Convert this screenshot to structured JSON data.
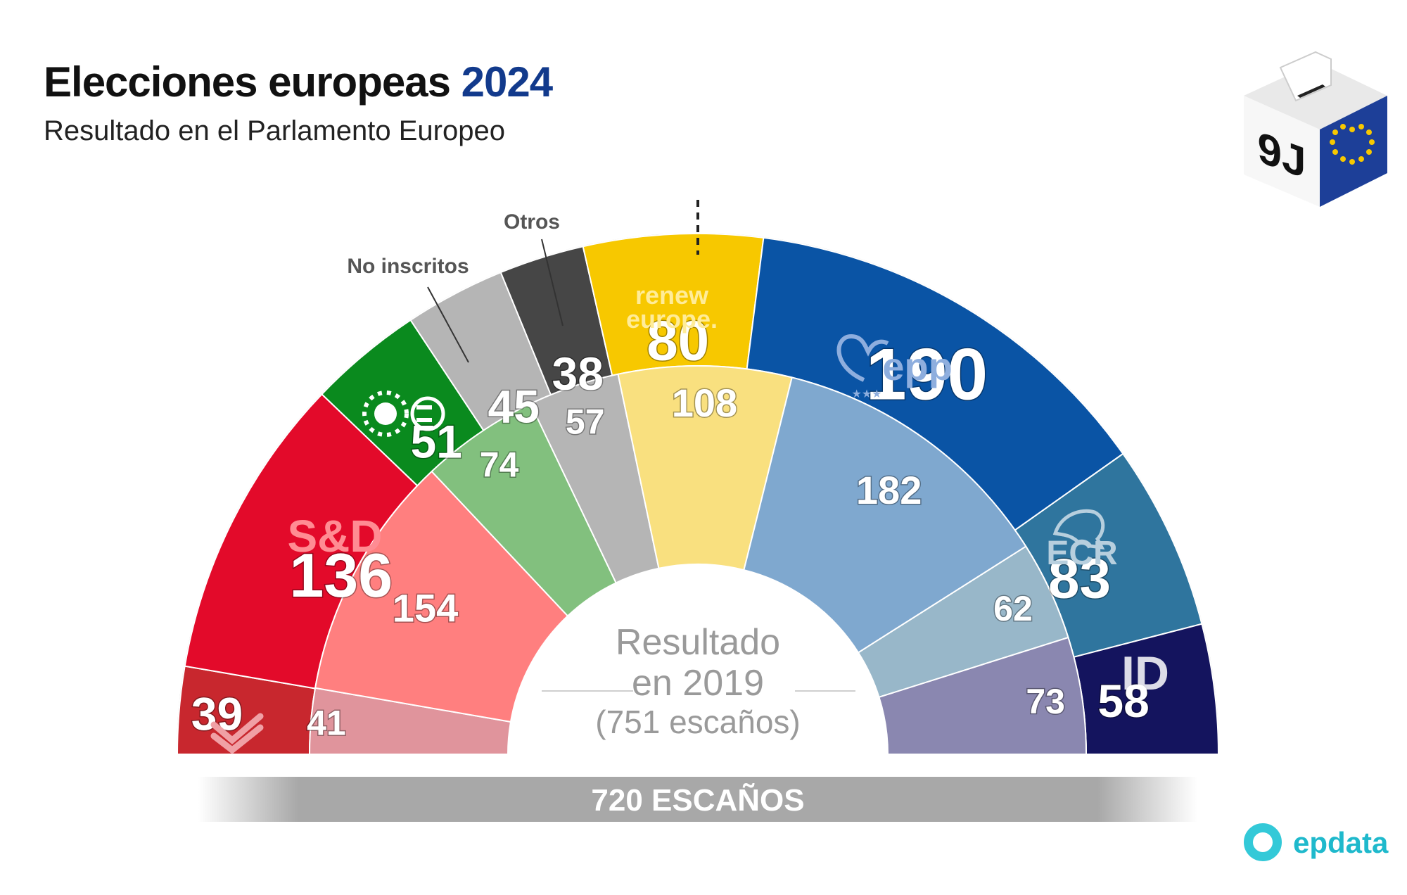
{
  "header": {
    "title": "Elecciones europeas",
    "title_year": "2024",
    "subtitle": "Resultado en el Parlamento Europeo"
  },
  "badge": {
    "label": "9J"
  },
  "total_bar": {
    "label": "720 ESCAÑOS"
  },
  "inner": {
    "line1": "Resultado",
    "line2": "en 2019",
    "line3": "(751 escaños)"
  },
  "callouts": {
    "no_inscritos": "No inscritos",
    "otros": "Otros"
  },
  "party_labels": {
    "sd": "S&D",
    "renew": [
      "renew",
      "europe."
    ],
    "epp": "epp",
    "ecr": "ECR",
    "id": "ID"
  },
  "logo": {
    "text": "epdata",
    "icon": "epdata-logo-icon"
  },
  "colors": {
    "left": "#c8272e",
    "sd": "#e30a2a",
    "greens": "#0a8a1e",
    "ni": "#b5b5b5",
    "otros": "#464646",
    "renew": "#f7c800",
    "epp": "#0a54a5",
    "ecr": "#2f759e",
    "id": "#14145e",
    "title_accent": "#123a8c"
  },
  "chart_data": [
    {
      "type": "pie",
      "subtype": "parliament-hemicycle",
      "title": "Elecciones europeas 2024",
      "total": 720,
      "series": [
        {
          "name": "The Left",
          "value": 39,
          "color": "#c8272e"
        },
        {
          "name": "S&D",
          "value": 136,
          "color": "#e30a2a"
        },
        {
          "name": "Greens/EFA",
          "value": 51,
          "color": "#0a8a1e"
        },
        {
          "name": "No inscritos",
          "value": 45,
          "color": "#b5b5b5"
        },
        {
          "name": "Otros",
          "value": 38,
          "color": "#464646"
        },
        {
          "name": "Renew Europe",
          "value": 80,
          "color": "#f7c800"
        },
        {
          "name": "EPP",
          "value": 190,
          "color": "#0a54a5"
        },
        {
          "name": "ECR",
          "value": 83,
          "color": "#2f759e"
        },
        {
          "name": "ID",
          "value": 58,
          "color": "#14145e"
        }
      ]
    },
    {
      "type": "pie",
      "subtype": "parliament-hemicycle",
      "title": "Resultado en 2019",
      "total": 751,
      "series": [
        {
          "name": "The Left",
          "value": 41,
          "color": "#e0949c"
        },
        {
          "name": "S&D",
          "value": 154,
          "color": "#ff7f7f"
        },
        {
          "name": "Greens/EFA",
          "value": 74,
          "color": "#82c07e"
        },
        {
          "name": "No inscritos",
          "value": 57,
          "color": "#b5b5b5"
        },
        {
          "name": "Renew Europe",
          "value": 108,
          "color": "#f9e07f"
        },
        {
          "name": "EPP",
          "value": 182,
          "color": "#7fa8cf"
        },
        {
          "name": "ECR",
          "value": 62,
          "color": "#98b7c9"
        },
        {
          "name": "ID",
          "value": 73,
          "color": "#8a87b0"
        }
      ]
    }
  ]
}
